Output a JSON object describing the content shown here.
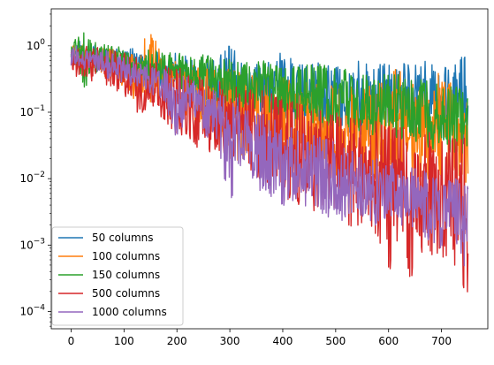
{
  "chart_data": {
    "type": "line",
    "title": "",
    "xlabel": "",
    "ylabel": "",
    "xlim": [
      -37.5,
      787.5
    ],
    "ylim": [
      5.5e-05,
      3.6
    ],
    "yscale": "log",
    "grid": false,
    "legend_position": "lower-left",
    "x_ticks": [
      {
        "value": 0,
        "label": "0"
      },
      {
        "value": 100,
        "label": "100"
      },
      {
        "value": 200,
        "label": "200"
      },
      {
        "value": 300,
        "label": "300"
      },
      {
        "value": 400,
        "label": "400"
      },
      {
        "value": 500,
        "label": "500"
      },
      {
        "value": 600,
        "label": "600"
      },
      {
        "value": 700,
        "label": "700"
      }
    ],
    "y_ticks": [
      {
        "value": 0.0001,
        "base": "10",
        "exp": "−4"
      },
      {
        "value": 0.001,
        "base": "10",
        "exp": "−3"
      },
      {
        "value": 0.01,
        "base": "10",
        "exp": "−2"
      },
      {
        "value": 0.1,
        "base": "10",
        "exp": "−1"
      },
      {
        "value": 1,
        "base": "10",
        "exp": "0"
      }
    ],
    "series": [
      {
        "name": "50 columns",
        "color": "#1f77b4",
        "x": [
          0,
          25,
          50,
          75,
          100,
          125,
          150,
          175,
          200,
          225,
          250,
          275,
          300,
          325,
          350,
          375,
          400,
          425,
          450,
          475,
          500,
          525,
          550,
          575,
          600,
          625,
          650,
          675,
          700,
          725,
          750
        ],
        "y_upper": [
          1.15,
          1.1,
          1.0,
          0.95,
          0.9,
          0.85,
          0.8,
          0.75,
          0.75,
          0.7,
          0.7,
          0.65,
          1.0,
          0.7,
          0.6,
          0.55,
          0.9,
          0.5,
          0.5,
          0.6,
          0.5,
          0.5,
          0.6,
          0.5,
          0.6,
          0.55,
          0.5,
          0.6,
          0.5,
          0.5,
          0.8
        ],
        "y_lower": [
          0.6,
          0.55,
          0.4,
          0.45,
          0.3,
          0.3,
          0.3,
          0.2,
          0.25,
          0.1,
          0.08,
          0.05,
          0.07,
          0.06,
          0.12,
          0.09,
          0.1,
          0.05,
          0.08,
          0.06,
          0.08,
          0.05,
          0.04,
          0.04,
          0.05,
          0.05,
          0.04,
          0.06,
          0.04,
          0.05,
          0.03
        ]
      },
      {
        "name": "100 columns",
        "color": "#ff7f0e",
        "x": [
          0,
          25,
          50,
          75,
          100,
          125,
          150,
          175,
          200,
          225,
          250,
          275,
          300,
          325,
          350,
          375,
          400,
          425,
          450,
          475,
          500,
          525,
          550,
          575,
          600,
          625,
          650,
          675,
          700,
          725,
          750
        ],
        "y_upper": [
          1.05,
          1.0,
          0.95,
          0.85,
          0.8,
          0.75,
          2.2,
          0.65,
          0.6,
          0.55,
          0.5,
          0.45,
          0.45,
          0.4,
          0.35,
          0.35,
          0.35,
          0.3,
          0.3,
          0.3,
          0.25,
          0.25,
          0.25,
          0.25,
          0.35,
          0.5,
          0.25,
          0.2,
          0.5,
          0.2,
          0.15
        ],
        "y_lower": [
          0.5,
          0.45,
          0.4,
          0.3,
          0.25,
          0.15,
          0.12,
          0.14,
          0.15,
          0.08,
          0.05,
          0.04,
          0.02,
          0.02,
          0.03,
          0.02,
          0.02,
          0.015,
          0.02,
          0.015,
          0.01,
          0.015,
          0.01,
          0.01,
          0.012,
          0.01,
          0.01,
          0.01,
          0.012,
          0.015,
          0.008
        ]
      },
      {
        "name": "150 columns",
        "color": "#2ca02c",
        "x": [
          0,
          25,
          50,
          75,
          100,
          125,
          150,
          175,
          200,
          225,
          250,
          275,
          300,
          325,
          350,
          375,
          400,
          425,
          450,
          475,
          500,
          525,
          550,
          575,
          600,
          625,
          650,
          675,
          700,
          725,
          750
        ],
        "y_upper": [
          1.2,
          1.55,
          1.0,
          1.0,
          0.9,
          0.85,
          0.85,
          0.8,
          0.8,
          0.75,
          0.75,
          0.7,
          0.7,
          0.65,
          0.6,
          0.6,
          0.55,
          0.55,
          0.5,
          0.5,
          0.45,
          0.45,
          0.4,
          0.4,
          0.35,
          0.35,
          0.3,
          0.3,
          0.25,
          0.25,
          0.2
        ],
        "y_lower": [
          0.5,
          0.24,
          0.45,
          0.4,
          0.35,
          0.3,
          0.3,
          0.28,
          0.25,
          0.2,
          0.2,
          0.15,
          0.15,
          0.12,
          0.12,
          0.1,
          0.1,
          0.08,
          0.08,
          0.07,
          0.06,
          0.06,
          0.05,
          0.05,
          0.05,
          0.04,
          0.04,
          0.03,
          0.03,
          0.025,
          0.025
        ]
      },
      {
        "name": "500 columns",
        "color": "#d62728",
        "x": [
          0,
          25,
          50,
          75,
          100,
          125,
          150,
          175,
          200,
          225,
          250,
          275,
          300,
          325,
          350,
          375,
          400,
          425,
          450,
          475,
          500,
          525,
          550,
          575,
          600,
          625,
          650,
          675,
          700,
          725,
          750
        ],
        "y_upper": [
          1.0,
          0.95,
          0.9,
          0.85,
          0.8,
          0.7,
          0.6,
          0.5,
          0.45,
          0.4,
          0.35,
          0.3,
          0.3,
          0.25,
          0.2,
          0.2,
          0.15,
          0.15,
          0.12,
          0.1,
          0.1,
          0.08,
          0.08,
          0.07,
          0.06,
          0.06,
          0.05,
          0.05,
          0.04,
          0.04,
          0.04
        ],
        "y_lower": [
          0.4,
          0.35,
          0.3,
          0.25,
          0.2,
          0.1,
          0.12,
          0.08,
          0.05,
          0.04,
          0.022,
          0.03,
          0.02,
          0.02,
          0.01,
          0.008,
          0.005,
          0.005,
          0.003,
          0.004,
          0.003,
          0.002,
          0.002,
          0.0015,
          0.0004,
          0.002,
          8.5e-05,
          0.001,
          0.0003,
          0.0005,
          0.00018
        ]
      },
      {
        "name": "1000 columns",
        "color": "#9467bd",
        "x": [
          0,
          25,
          50,
          75,
          100,
          125,
          150,
          175,
          200,
          225,
          250,
          275,
          300,
          325,
          350,
          375,
          400,
          425,
          450,
          475,
          500,
          525,
          550,
          575,
          600,
          625,
          650,
          675,
          700,
          725,
          750
        ],
        "y_upper": [
          1.0,
          0.9,
          0.85,
          0.8,
          0.7,
          0.6,
          0.5,
          0.45,
          0.4,
          0.3,
          0.25,
          0.2,
          0.15,
          0.12,
          0.1,
          0.08,
          0.07,
          0.05,
          0.05,
          0.04,
          0.035,
          0.03,
          0.025,
          0.02,
          0.02,
          0.015,
          0.015,
          0.012,
          0.01,
          0.01,
          0.008
        ],
        "y_lower": [
          0.5,
          0.45,
          0.4,
          0.35,
          0.3,
          0.25,
          0.2,
          0.15,
          0.035,
          0.12,
          0.05,
          0.04,
          0.0045,
          0.02,
          0.008,
          0.006,
          0.004,
          0.005,
          0.004,
          0.003,
          0.002,
          0.003,
          0.0025,
          0.002,
          0.003,
          0.002,
          0.002,
          0.0012,
          0.001,
          0.0015,
          0.0003
        ]
      }
    ]
  }
}
